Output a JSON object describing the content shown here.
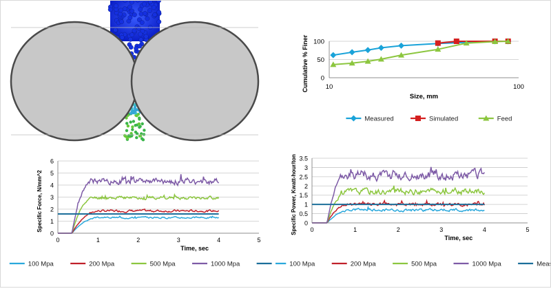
{
  "chart_data": [
    {
      "type": "line",
      "xscale": "log",
      "xlabel": "Size, mm",
      "ylabel": "Cumulative % Finer",
      "xlim": [
        10,
        100
      ],
      "ylim": [
        0,
        100
      ],
      "yticks": [
        0,
        50,
        100
      ],
      "xticks": [
        10,
        100
      ],
      "legend_position": "bottom",
      "grid": "horizontal",
      "series": [
        {
          "name": "Measured",
          "color": "#1aa3d9",
          "marker": "diamond",
          "x": [
            10.5,
            13.2,
            16.0,
            18.8,
            24.0,
            37.5,
            75.0,
            88.0
          ],
          "y": [
            62,
            70,
            76,
            82,
            88,
            94,
            100,
            100
          ]
        },
        {
          "name": "Simulated",
          "color": "#d41f1f",
          "marker": "square",
          "x": [
            37.5,
            47.0,
            75.0,
            88.0
          ],
          "y": [
            95,
            100,
            100,
            100
          ]
        },
        {
          "name": "Feed",
          "color": "#8cc63f",
          "marker": "triangle",
          "x": [
            10.5,
            13.2,
            16.0,
            18.8,
            24.0,
            37.5,
            53.0,
            75.0,
            88.0
          ],
          "y": [
            36,
            40,
            45,
            51,
            62,
            78,
            95,
            99,
            100
          ]
        }
      ]
    },
    {
      "type": "line",
      "xlabel": "Time, sec",
      "ylabel": "Specific Force, N/mm^2",
      "xlim": [
        0,
        5
      ],
      "ylim": [
        0,
        6
      ],
      "xticks": [
        0,
        1,
        2,
        3,
        4,
        5
      ],
      "yticks": [
        0,
        1,
        2,
        3,
        4,
        5,
        6
      ],
      "yticklabels": [
        "0",
        "1",
        "2",
        "3",
        "4",
        "5",
        "6"
      ],
      "legend_position": "bottom",
      "grid": "horizontal",
      "series": [
        {
          "name": "100 Mpa",
          "color": "#2aa8dc",
          "plateau": 1.3,
          "start": 0.35,
          "rise": 0.7,
          "noise": 0.05,
          "seed": 3
        },
        {
          "name": "200 Mpa",
          "color": "#c0202a",
          "plateau": 1.85,
          "start": 0.35,
          "rise": 0.7,
          "noise": 0.07,
          "seed": 7
        },
        {
          "name": "500 Mpa",
          "color": "#8cc63f",
          "plateau": 2.95,
          "start": 0.35,
          "rise": 0.55,
          "noise": 0.1,
          "seed": 11
        },
        {
          "name": "1000 Mpa",
          "color": "#7d5aa6",
          "plateau": 4.3,
          "start": 0.35,
          "rise": 0.5,
          "noise": 0.2,
          "seed": 19
        },
        {
          "name": "Measured",
          "color": "#1b6e9a",
          "constant": 1.6
        }
      ]
    },
    {
      "type": "line",
      "xlabel": "Time, sec",
      "ylabel": "Specific Power, Kwatt-hour/ton",
      "xlim": [
        0,
        5
      ],
      "ylim": [
        0,
        3.5
      ],
      "xticks": [
        0,
        1,
        2,
        3,
        4,
        5
      ],
      "yticks": [
        0,
        0.5,
        1,
        1.5,
        2,
        2.5,
        3,
        3.5
      ],
      "yticklabels": [
        "0",
        "0.5",
        "1",
        "1.5",
        "2",
        "2.5",
        "3",
        "3.5"
      ],
      "legend_position": "bottom",
      "grid": "horizontal",
      "series": [
        {
          "name": "100 Mpa",
          "color": "#2aa8dc",
          "plateau": 0.7,
          "start": 0.35,
          "rise": 0.6,
          "noise": 0.06,
          "seed": 23
        },
        {
          "name": "200 Mpa",
          "color": "#c0202a",
          "plateau": 1.0,
          "start": 0.35,
          "rise": 0.5,
          "noise": 0.07,
          "seed": 29
        },
        {
          "name": "500 Mpa",
          "color": "#8cc63f",
          "plateau": 1.7,
          "start": 0.35,
          "rise": 0.5,
          "noise": 0.13,
          "seed": 31
        },
        {
          "name": "1000 Mpa",
          "color": "#7d5aa6",
          "plateau": 2.6,
          "start": 0.35,
          "rise": 0.45,
          "noise": 0.22,
          "seed": 37
        },
        {
          "name": "Measured",
          "color": "#1b6e9a",
          "constant": 1.0
        }
      ]
    }
  ]
}
